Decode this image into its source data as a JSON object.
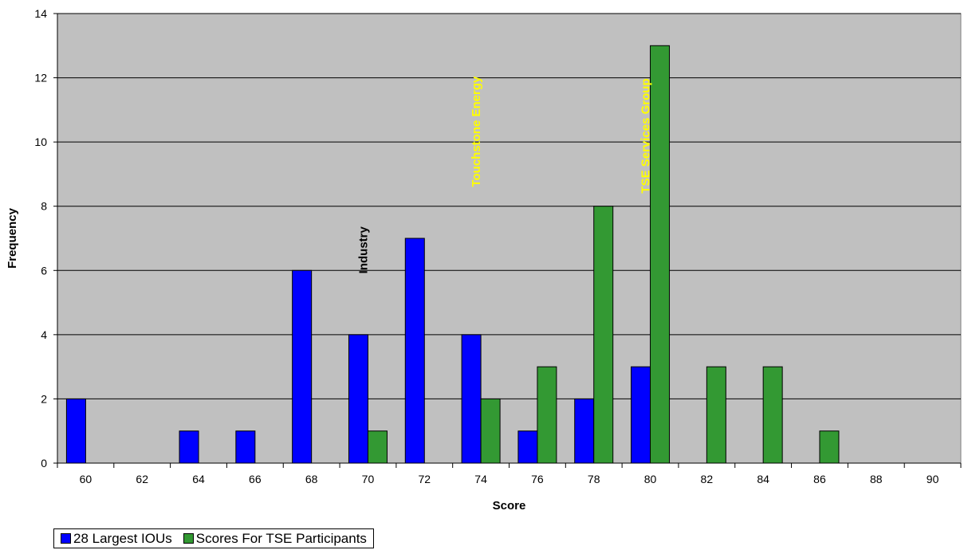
{
  "chart_data": {
    "type": "bar",
    "title": "",
    "xlabel": "Score",
    "ylabel": "Frequency",
    "categories": [
      "60",
      "62",
      "64",
      "66",
      "68",
      "70",
      "72",
      "74",
      "76",
      "78",
      "80",
      "82",
      "84",
      "86",
      "88",
      "90"
    ],
    "series": [
      {
        "name": "28 Largest IOUs",
        "color": "#0000ff",
        "values": [
          2,
          0,
          1,
          1,
          6,
          4,
          7,
          4,
          1,
          2,
          3,
          0,
          0,
          0,
          0,
          0
        ]
      },
      {
        "name": "Scores For TSE Participants",
        "color": "#339933",
        "values": [
          0,
          0,
          0,
          0,
          0,
          1,
          0,
          2,
          3,
          8,
          13,
          3,
          3,
          1,
          0,
          0
        ]
      }
    ],
    "ylim": [
      0,
      14
    ],
    "yticks": [
      0,
      2,
      4,
      6,
      8,
      10,
      12,
      14
    ],
    "grid": true,
    "plot_background": "#c0c0c0",
    "legend_position": "bottom-left",
    "annotations": [
      {
        "text": "Industry",
        "x": "70",
        "y": 5.9,
        "color": "#000000",
        "rotation": "vertical"
      },
      {
        "text": "Touchstone Energy",
        "x": "74",
        "y": 8.6,
        "color": "#ffff00",
        "rotation": "vertical"
      },
      {
        "text": "TSE Services Group",
        "x": "80",
        "y": 8.4,
        "color": "#ffff00",
        "rotation": "vertical"
      }
    ]
  }
}
